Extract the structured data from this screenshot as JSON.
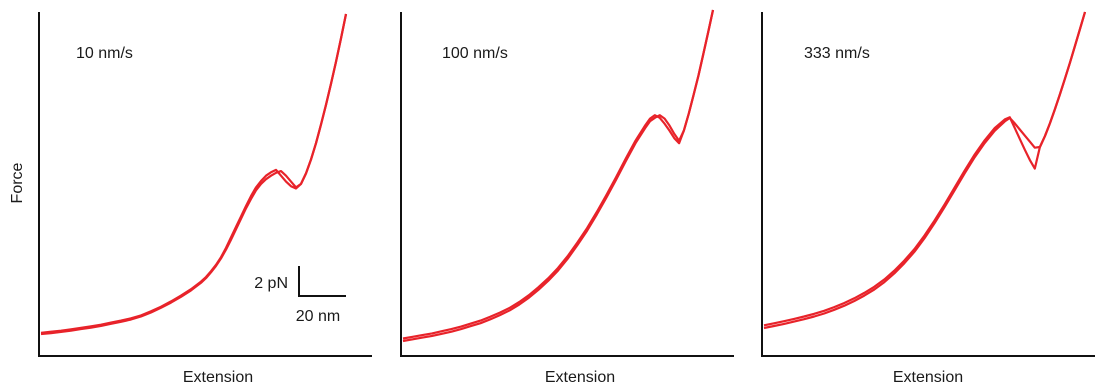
{
  "figure": {
    "ylabel": "Force",
    "scalebar": {
      "force_label": "2 pN",
      "extension_label": "20 nm"
    }
  },
  "chart_data": [
    {
      "type": "line",
      "title": "10 nm/s",
      "xlabel": "Extension",
      "ylabel": "Force",
      "color": "#e8232a",
      "series": [
        {
          "x": [
            0,
            10,
            20,
            30,
            40,
            50,
            60,
            70,
            80,
            90,
            100,
            110,
            120,
            130,
            140,
            150,
            160,
            165,
            170,
            175,
            180,
            185,
            190,
            195,
            200,
            205,
            210,
            215,
            220,
            225,
            230,
            235,
            240,
            245,
            250,
            255,
            260,
            265,
            270,
            275,
            280,
            285,
            290,
            295,
            300,
            305
          ],
          "y": [
            0.0,
            0.08,
            0.18,
            0.28,
            0.42,
            0.55,
            0.7,
            0.88,
            1.05,
            1.25,
            1.5,
            1.85,
            2.25,
            2.7,
            3.2,
            3.75,
            4.4,
            4.8,
            5.3,
            5.85,
            6.5,
            7.25,
            8.1,
            9.0,
            9.9,
            10.8,
            11.6,
            12.35,
            12.9,
            13.3,
            13.6,
            13.85,
            14.0,
            13.6,
            13.1,
            12.6,
            12.9,
            13.8,
            15.0,
            16.4,
            18.0,
            19.7,
            21.5,
            23.4,
            25.4,
            27.5
          ]
        },
        {
          "x": [
            0,
            10,
            20,
            30,
            40,
            50,
            60,
            70,
            80,
            90,
            100,
            110,
            120,
            130,
            140,
            150,
            160,
            165,
            170,
            175,
            180,
            185,
            190,
            195,
            200,
            205,
            210,
            215,
            220,
            225,
            230,
            235,
            240,
            245,
            250,
            255,
            260,
            265,
            270,
            275,
            280,
            285,
            290,
            295,
            300,
            305
          ],
          "y": [
            0.1,
            0.2,
            0.28,
            0.4,
            0.52,
            0.66,
            0.8,
            0.98,
            1.15,
            1.35,
            1.6,
            1.95,
            2.35,
            2.8,
            3.3,
            3.85,
            4.5,
            4.9,
            5.4,
            5.95,
            6.6,
            7.4,
            8.3,
            9.2,
            10.1,
            11.0,
            11.85,
            12.6,
            13.15,
            13.6,
            13.9,
            14.1,
            13.6,
            13.1,
            12.7,
            12.5,
            12.9,
            13.8,
            15.0,
            16.4,
            18.0,
            19.7,
            21.5,
            23.4,
            25.4,
            27.5
          ]
        }
      ]
    },
    {
      "type": "line",
      "title": "100 nm/s",
      "xlabel": "Extension",
      "color": "#e8232a",
      "series": [
        {
          "x": [
            0,
            10,
            20,
            30,
            40,
            50,
            60,
            70,
            80,
            90,
            100,
            110,
            120,
            130,
            140,
            150,
            160,
            170,
            180,
            190,
            200,
            210,
            220,
            230,
            240,
            250,
            255,
            260,
            265,
            270,
            275,
            280,
            285,
            290,
            295,
            300,
            305,
            310,
            315,
            320
          ],
          "y": [
            0.0,
            0.2,
            0.4,
            0.6,
            0.85,
            1.1,
            1.4,
            1.75,
            2.1,
            2.55,
            3.05,
            3.6,
            4.3,
            5.1,
            6.05,
            7.1,
            8.3,
            9.7,
            11.3,
            13.0,
            14.9,
            16.9,
            19.0,
            21.2,
            23.3,
            25.1,
            25.9,
            26.3,
            26.6,
            26.2,
            25.4,
            24.4,
            23.6,
            24.8,
            26.8,
            29.0,
            31.3,
            33.8,
            36.4,
            39.0
          ]
        },
        {
          "x": [
            0,
            10,
            20,
            30,
            40,
            50,
            60,
            70,
            80,
            90,
            100,
            110,
            120,
            130,
            140,
            150,
            160,
            170,
            180,
            190,
            200,
            210,
            220,
            230,
            240,
            250,
            255,
            260,
            265,
            270,
            275,
            280,
            285,
            290,
            295,
            300,
            305,
            310,
            315,
            320
          ],
          "y": [
            0.3,
            0.5,
            0.7,
            0.9,
            1.15,
            1.4,
            1.7,
            2.05,
            2.4,
            2.85,
            3.35,
            3.9,
            4.6,
            5.4,
            6.35,
            7.4,
            8.6,
            10.0,
            11.6,
            13.3,
            15.2,
            17.2,
            19.3,
            21.5,
            23.6,
            25.4,
            26.2,
            26.6,
            26.3,
            25.6,
            24.8,
            23.9,
            23.3,
            24.8,
            26.8,
            29.0,
            31.3,
            33.8,
            36.4,
            39.0
          ]
        }
      ]
    },
    {
      "type": "line",
      "title": "333 nm/s",
      "xlabel": "Extension",
      "color": "#e8232a",
      "series": [
        {
          "x": [
            0,
            10,
            20,
            30,
            40,
            50,
            60,
            70,
            80,
            90,
            100,
            110,
            120,
            130,
            140,
            150,
            160,
            170,
            180,
            190,
            200,
            210,
            220,
            230,
            240,
            245,
            250,
            255,
            260,
            265,
            270,
            275,
            280,
            285,
            290,
            295,
            300,
            305,
            310,
            315,
            320
          ],
          "y": [
            0.0,
            0.3,
            0.6,
            0.95,
            1.3,
            1.7,
            2.15,
            2.7,
            3.3,
            4.0,
            4.8,
            5.7,
            6.8,
            8.1,
            9.6,
            11.3,
            13.3,
            15.5,
            17.9,
            20.4,
            22.9,
            25.3,
            27.4,
            29.2,
            30.6,
            31.1,
            30.3,
            29.4,
            28.5,
            27.6,
            26.7,
            26.8,
            28.4,
            30.3,
            32.4,
            34.6,
            36.9,
            39.3,
            41.8,
            44.3,
            46.8
          ]
        },
        {
          "x": [
            0,
            10,
            20,
            30,
            40,
            50,
            60,
            70,
            80,
            90,
            100,
            110,
            120,
            130,
            140,
            150,
            160,
            170,
            180,
            190,
            200,
            210,
            220,
            230,
            240,
            245,
            250,
            255,
            260,
            265,
            270,
            275,
            280,
            285,
            290,
            295,
            300,
            305,
            310,
            315,
            320
          ],
          "y": [
            0.4,
            0.7,
            1.0,
            1.35,
            1.7,
            2.1,
            2.55,
            3.1,
            3.7,
            4.4,
            5.2,
            6.1,
            7.2,
            8.5,
            10.0,
            11.7,
            13.7,
            15.9,
            18.3,
            20.8,
            23.3,
            25.7,
            27.8,
            29.6,
            30.9,
            31.2,
            29.6,
            28.0,
            26.4,
            24.9,
            23.6,
            26.8,
            28.4,
            30.3,
            32.4,
            34.6,
            36.9,
            39.3,
            41.8,
            44.3,
            46.8
          ]
        }
      ]
    }
  ]
}
